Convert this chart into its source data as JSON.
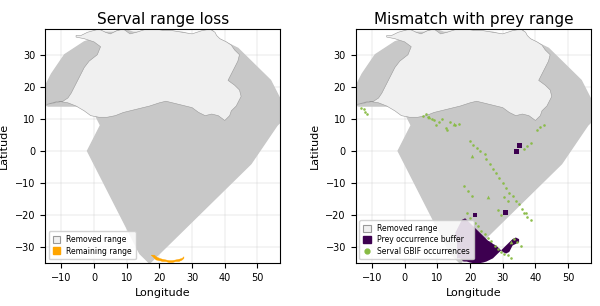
{
  "title_left": "Serval range loss",
  "title_right": "Mismatch with prey range",
  "xlabel": "Longitude",
  "ylabel": "Latitude",
  "xlim": [
    -15,
    57
  ],
  "ylim": [
    -35,
    38
  ],
  "xticks": [
    -10,
    0,
    10,
    20,
    30,
    40,
    50
  ],
  "yticks": [
    -30,
    -20,
    -10,
    0,
    10,
    20,
    30
  ],
  "land_color": "#c8c8c8",
  "ocean_color": "#ffffff",
  "removed_range_color": "#f0f0f0",
  "removed_range_edge": "#999999",
  "remaining_range_color": "#ffa500",
  "prey_buffer_color": "#3d0050",
  "gbif_color": "#88bb44",
  "legend1_labels": [
    "Removed range",
    "Remaining range"
  ],
  "legend2_labels": [
    "Removed range",
    "Prey occurrence buffer",
    "Serval GBIF occurrences"
  ],
  "removed_range_poly": [
    [
      -14.5,
      14.5
    ],
    [
      -11.0,
      15.5
    ],
    [
      -8.0,
      15.0
    ],
    [
      -5.5,
      14.0
    ],
    [
      -3.0,
      12.5
    ],
    [
      -1.0,
      11.0
    ],
    [
      1.5,
      10.5
    ],
    [
      4.0,
      10.5
    ],
    [
      6.5,
      11.0
    ],
    [
      9.0,
      12.0
    ],
    [
      11.0,
      12.5
    ],
    [
      13.0,
      13.0
    ],
    [
      15.0,
      13.5
    ],
    [
      17.0,
      14.0
    ],
    [
      18.5,
      14.5
    ],
    [
      20.0,
      15.0
    ],
    [
      22.0,
      15.5
    ],
    [
      24.0,
      15.0
    ],
    [
      26.0,
      14.5
    ],
    [
      28.0,
      14.0
    ],
    [
      30.0,
      13.5
    ],
    [
      32.0,
      12.0
    ],
    [
      34.0,
      11.0
    ],
    [
      36.0,
      11.5
    ],
    [
      38.0,
      11.0
    ],
    [
      40.0,
      9.5
    ],
    [
      41.5,
      11.0
    ],
    [
      42.0,
      12.5
    ],
    [
      43.5,
      14.0
    ],
    [
      44.0,
      15.0
    ],
    [
      45.0,
      17.0
    ],
    [
      44.5,
      19.0
    ],
    [
      43.0,
      20.5
    ],
    [
      41.0,
      22.0
    ],
    [
      42.0,
      24.0
    ],
    [
      43.0,
      26.0
    ],
    [
      44.0,
      28.0
    ],
    [
      44.5,
      30.0
    ],
    [
      43.0,
      31.5
    ],
    [
      42.0,
      33.0
    ],
    [
      40.5,
      34.0
    ],
    [
      38.5,
      35.0
    ],
    [
      37.5,
      36.0
    ],
    [
      37.0,
      37.0
    ],
    [
      35.5,
      38.0
    ],
    [
      33.0,
      37.5
    ],
    [
      30.0,
      36.5
    ],
    [
      27.0,
      37.0
    ],
    [
      24.0,
      37.5
    ],
    [
      21.5,
      37.5
    ],
    [
      19.0,
      38.0
    ],
    [
      16.0,
      38.0
    ],
    [
      13.0,
      37.0
    ],
    [
      11.0,
      36.5
    ],
    [
      9.0,
      38.0
    ],
    [
      7.0,
      37.5
    ],
    [
      5.0,
      36.5
    ],
    [
      3.5,
      37.0
    ],
    [
      1.5,
      38.0
    ],
    [
      -2.0,
      37.0
    ],
    [
      -4.0,
      36.0
    ],
    [
      -5.5,
      36.0
    ],
    [
      -5.5,
      35.5
    ],
    [
      -3.0,
      35.0
    ],
    [
      0.0,
      34.0
    ],
    [
      2.0,
      32.5
    ],
    [
      1.0,
      30.0
    ],
    [
      -1.5,
      28.0
    ],
    [
      -3.0,
      26.0
    ],
    [
      -4.0,
      24.0
    ],
    [
      -5.0,
      22.0
    ],
    [
      -6.0,
      20.0
    ],
    [
      -7.0,
      18.0
    ],
    [
      -8.0,
      16.5
    ],
    [
      -9.5,
      15.5
    ],
    [
      -12.0,
      15.0
    ],
    [
      -14.5,
      14.5
    ]
  ],
  "remaining_range_poly": [
    [
      17.5,
      -32.5
    ],
    [
      18.5,
      -32.5
    ],
    [
      19.0,
      -33.0
    ],
    [
      20.0,
      -33.5
    ],
    [
      21.0,
      -33.8
    ],
    [
      22.0,
      -34.0
    ],
    [
      23.0,
      -34.2
    ],
    [
      24.0,
      -34.2
    ],
    [
      25.0,
      -34.0
    ],
    [
      26.0,
      -33.8
    ],
    [
      27.0,
      -33.5
    ],
    [
      27.5,
      -33.0
    ],
    [
      27.5,
      -33.5
    ],
    [
      27.0,
      -34.0
    ],
    [
      26.0,
      -34.5
    ],
    [
      25.0,
      -34.5
    ],
    [
      24.0,
      -34.8
    ],
    [
      23.0,
      -34.8
    ],
    [
      22.0,
      -34.5
    ],
    [
      21.0,
      -34.5
    ],
    [
      20.0,
      -34.2
    ],
    [
      19.0,
      -34.0
    ],
    [
      18.5,
      -33.5
    ],
    [
      18.0,
      -33.0
    ],
    [
      17.5,
      -32.5
    ]
  ],
  "prey_buffer_polys": [
    [
      [
        16.0,
        -33.5
      ],
      [
        17.0,
        -33.5
      ],
      [
        17.5,
        -34.0
      ],
      [
        18.0,
        -34.5
      ],
      [
        19.0,
        -34.5
      ],
      [
        20.0,
        -34.8
      ],
      [
        21.0,
        -35.0
      ],
      [
        22.0,
        -35.0
      ],
      [
        23.0,
        -35.0
      ],
      [
        24.0,
        -34.8
      ],
      [
        25.0,
        -34.5
      ],
      [
        26.0,
        -34.0
      ],
      [
        27.0,
        -33.5
      ],
      [
        28.0,
        -32.5
      ],
      [
        29.0,
        -31.5
      ],
      [
        30.0,
        -30.5
      ],
      [
        31.0,
        -29.5
      ],
      [
        32.0,
        -28.5
      ],
      [
        33.0,
        -27.5
      ],
      [
        34.0,
        -27.0
      ],
      [
        35.0,
        -27.5
      ],
      [
        35.0,
        -28.5
      ],
      [
        34.0,
        -29.0
      ],
      [
        33.0,
        -29.5
      ],
      [
        32.5,
        -30.5
      ],
      [
        32.0,
        -31.5
      ],
      [
        31.0,
        -32.0
      ],
      [
        30.0,
        -31.5
      ],
      [
        29.0,
        -30.5
      ],
      [
        28.0,
        -29.5
      ],
      [
        27.0,
        -29.0
      ],
      [
        26.5,
        -28.5
      ],
      [
        25.5,
        -28.0
      ],
      [
        24.5,
        -27.0
      ],
      [
        23.5,
        -26.0
      ],
      [
        22.5,
        -25.0
      ],
      [
        21.5,
        -24.0
      ],
      [
        20.5,
        -23.0
      ],
      [
        19.5,
        -22.0
      ],
      [
        18.5,
        -21.0
      ],
      [
        17.5,
        -21.5
      ],
      [
        17.0,
        -22.5
      ],
      [
        16.5,
        -23.5
      ],
      [
        16.0,
        -24.5
      ],
      [
        15.5,
        -25.5
      ],
      [
        15.5,
        -27.0
      ],
      [
        16.0,
        -28.5
      ],
      [
        16.0,
        -30.0
      ],
      [
        16.0,
        -31.5
      ],
      [
        16.0,
        -33.0
      ],
      [
        16.0,
        -33.5
      ]
    ],
    [
      [
        21.0,
        -20.5
      ],
      [
        22.0,
        -20.5
      ],
      [
        22.0,
        -19.5
      ],
      [
        21.0,
        -19.5
      ],
      [
        21.0,
        -20.5
      ]
    ],
    [
      [
        30.0,
        -20.0
      ],
      [
        31.5,
        -20.0
      ],
      [
        31.5,
        -18.5
      ],
      [
        30.0,
        -18.5
      ],
      [
        30.0,
        -20.0
      ]
    ],
    [
      [
        33.5,
        -1.0
      ],
      [
        35.0,
        -1.0
      ],
      [
        35.0,
        0.5
      ],
      [
        33.5,
        0.5
      ],
      [
        33.5,
        -1.0
      ]
    ],
    [
      [
        34.5,
        1.0
      ],
      [
        36.0,
        1.0
      ],
      [
        36.0,
        2.5
      ],
      [
        34.5,
        2.5
      ],
      [
        34.5,
        1.0
      ]
    ]
  ],
  "gbif_points": [
    [
      -13.5,
      13.5
    ],
    [
      -12.5,
      13.0
    ],
    [
      -12.0,
      12.0
    ],
    [
      -11.5,
      11.5
    ],
    [
      5.5,
      11.0
    ],
    [
      6.5,
      11.5
    ],
    [
      7.0,
      10.5
    ],
    [
      8.5,
      10.0
    ],
    [
      9.0,
      9.5
    ],
    [
      9.5,
      8.0
    ],
    [
      10.5,
      9.0
    ],
    [
      11.5,
      10.0
    ],
    [
      14.0,
      9.0
    ],
    [
      15.5,
      8.0
    ],
    [
      16.5,
      8.5
    ],
    [
      12.5,
      7.0
    ],
    [
      13.0,
      6.5
    ],
    [
      20.0,
      3.0
    ],
    [
      21.0,
      2.0
    ],
    [
      22.0,
      1.0
    ],
    [
      23.0,
      0.0
    ],
    [
      24.5,
      -1.0
    ],
    [
      25.0,
      -2.5
    ],
    [
      26.0,
      -4.0
    ],
    [
      27.0,
      -5.5
    ],
    [
      28.0,
      -7.0
    ],
    [
      29.0,
      -8.5
    ],
    [
      30.0,
      -10.0
    ],
    [
      31.0,
      -11.5
    ],
    [
      32.0,
      -13.0
    ],
    [
      33.0,
      -14.0
    ],
    [
      34.0,
      -15.5
    ],
    [
      35.0,
      -16.5
    ],
    [
      36.0,
      -18.0
    ],
    [
      37.0,
      -19.5
    ],
    [
      36.5,
      0.5
    ],
    [
      37.5,
      1.5
    ],
    [
      38.5,
      2.5
    ],
    [
      40.5,
      6.5
    ],
    [
      41.5,
      7.5
    ],
    [
      42.5,
      8.0
    ],
    [
      19.0,
      -19.5
    ],
    [
      20.0,
      -21.0
    ],
    [
      21.5,
      -22.5
    ],
    [
      22.5,
      -23.5
    ],
    [
      23.5,
      -25.0
    ],
    [
      24.5,
      -26.0
    ],
    [
      25.5,
      -27.0
    ],
    [
      26.5,
      -28.0
    ],
    [
      27.5,
      -29.5
    ],
    [
      28.5,
      -30.5
    ],
    [
      29.5,
      -31.5
    ],
    [
      30.5,
      -32.0
    ],
    [
      31.5,
      -32.5
    ],
    [
      32.5,
      -33.5
    ],
    [
      33.5,
      -27.5
    ],
    [
      34.5,
      -28.5
    ],
    [
      35.5,
      -29.5
    ],
    [
      36.5,
      -19.5
    ],
    [
      37.5,
      -20.5
    ],
    [
      38.5,
      -21.5
    ],
    [
      28.5,
      -18.5
    ],
    [
      29.5,
      -20.0
    ],
    [
      30.5,
      -14.5
    ],
    [
      31.5,
      -15.5
    ],
    [
      18.0,
      -11.0
    ],
    [
      19.5,
      -12.5
    ],
    [
      20.5,
      -14.0
    ]
  ],
  "gbif_triangles": [
    [
      7.5,
      10.5
    ],
    [
      15.0,
      8.5
    ],
    [
      20.5,
      -1.5
    ],
    [
      25.5,
      -14.5
    ],
    [
      32.5,
      -28.5
    ]
  ]
}
